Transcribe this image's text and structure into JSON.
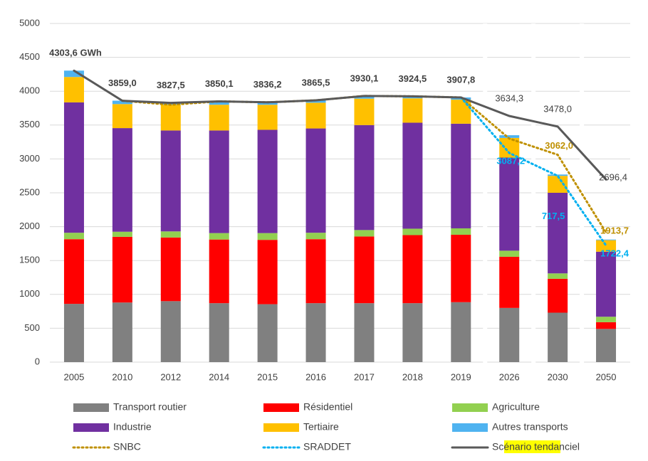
{
  "chart_data": {
    "type": "bar",
    "categories": [
      "2005",
      "2010",
      "2012",
      "2014",
      "2015",
      "2016",
      "2017",
      "2018",
      "2019",
      "2026",
      "2030",
      "2050"
    ],
    "ylim": [
      0,
      5000
    ],
    "yticks": [
      0,
      500,
      1000,
      1500,
      2000,
      2500,
      3000,
      3500,
      4000,
      4500,
      5000
    ],
    "grid": true,
    "series": [
      {
        "name": "Transport routier",
        "color": "#808080",
        "values": [
          860,
          880,
          900,
          870,
          855,
          870,
          870,
          870,
          885,
          800,
          730,
          490
        ]
      },
      {
        "name": "Résidentiel",
        "color": "#ff0000",
        "values": [
          955,
          970,
          940,
          940,
          950,
          945,
          985,
          1005,
          995,
          755,
          500,
          100
        ]
      },
      {
        "name": "Agriculture",
        "color": "#92d050",
        "values": [
          95,
          75,
          90,
          95,
          100,
          95,
          95,
          95,
          95,
          90,
          80,
          80
        ]
      },
      {
        "name": "Industrie",
        "color": "#7030a0",
        "values": [
          1925,
          1530,
          1490,
          1515,
          1525,
          1540,
          1550,
          1565,
          1545,
          1375,
          1190,
          960
        ]
      },
      {
        "name": "Tertiaire",
        "color": "#ffc000",
        "values": [
          375,
          355,
          380,
          380,
          370,
          380,
          390,
          360,
          355,
          290,
          250,
          170
        ]
      },
      {
        "name": "Autres transports",
        "color": "#4fb3f0",
        "values": [
          94,
          50,
          28,
          50,
          36,
          35,
          40,
          30,
          33,
          40,
          20,
          10
        ]
      }
    ],
    "lines": [
      {
        "name": "SNBC",
        "color": "#bf9000",
        "style": "dotted",
        "values": [
          null,
          3859.0,
          3800,
          3850.1,
          3836.2,
          3865.5,
          3930.1,
          3924.5,
          3907.8,
          3300,
          3062.0,
          1913.7
        ],
        "value_labels": [
          null,
          null,
          null,
          null,
          null,
          null,
          null,
          null,
          null,
          null,
          "3062,0",
          "1913,7"
        ]
      },
      {
        "name": "SRADDET",
        "color": "#00b0f0",
        "style": "dotted",
        "values": [
          null,
          null,
          null,
          null,
          null,
          null,
          null,
          null,
          3907.8,
          3087.2,
          2750,
          1722.4
        ],
        "value_labels": [
          null,
          null,
          null,
          null,
          null,
          null,
          null,
          null,
          null,
          "3087,2",
          null,
          "1722,4"
        ]
      },
      {
        "name": "Scénario tendanciel",
        "color": "#595959",
        "style": "solid",
        "values": [
          4303.6,
          3859.0,
          3827.5,
          3850.1,
          3836.2,
          3865.5,
          3930.1,
          3924.5,
          3907.8,
          3634.3,
          3478.0,
          2696.4
        ],
        "value_labels": [
          "4303,6 GWh",
          "3859,0",
          "3827,5",
          "3850,1",
          "3836,2",
          "3865,5",
          "3930,1",
          "3924,5",
          "3907,8",
          "3634,3",
          "3478,0",
          "2696,4"
        ]
      }
    ],
    "annotations": [
      "717,5"
    ]
  }
}
